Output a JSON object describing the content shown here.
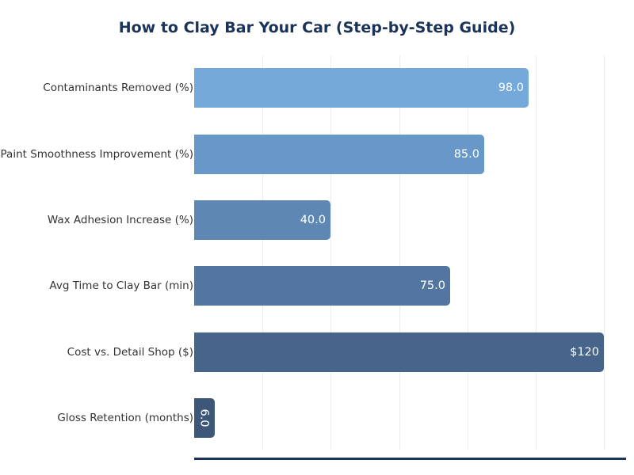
{
  "title": "How to Clay Bar Your Car (Step-by-Step Guide)",
  "chart_data": {
    "type": "bar",
    "orientation": "horizontal",
    "title": "How to Clay Bar Your Car (Step-by-Step Guide)",
    "xlabel": "",
    "ylabel": "",
    "categories": [
      "Contaminants Removed (%)",
      "Paint Smoothness Improvement (%)",
      "Wax Adhesion Increase (%)",
      "Avg Time to Clay Bar (min)",
      "Cost vs. Detail Shop ($)",
      "Gloss Retention (months)"
    ],
    "values": [
      98.0,
      85.0,
      40.0,
      75.0,
      120,
      6.0
    ],
    "value_labels": [
      "98.0",
      "85.0",
      "40.0",
      "75.0",
      "$120",
      "6.0"
    ],
    "colors": [
      "#74a9da",
      "#6898c8",
      "#5f87b3",
      "#52769f",
      "#47658a",
      "#3e5778"
    ],
    "xlim": [
      0,
      126
    ],
    "x_gridlines": [
      20,
      40,
      60,
      80,
      100,
      120
    ],
    "grid": true,
    "x_tick_labels_visible": false,
    "legend": null
  }
}
